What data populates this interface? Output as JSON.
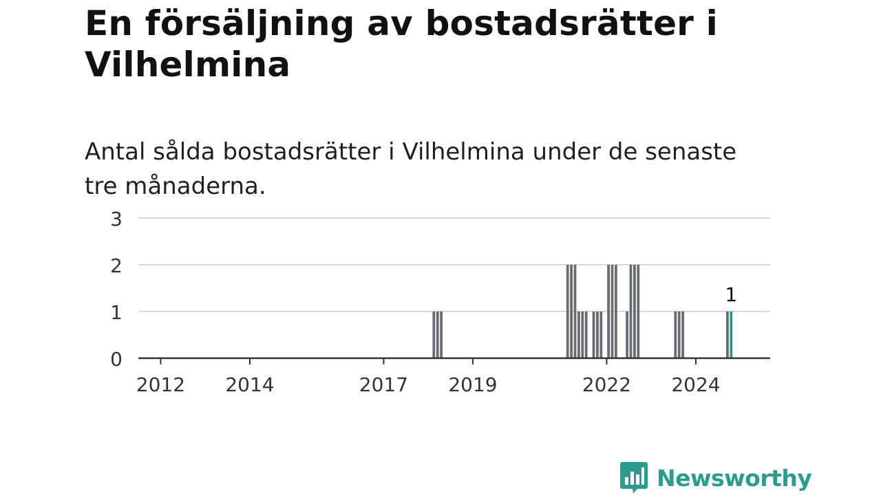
{
  "header": {
    "title": "En försäljning av bostadsrätter i Vilhelmina",
    "subtitle": "Antal sålda bostadsrätter i Vilhelmina under de senaste tre månaderna."
  },
  "brand": {
    "name": "Newsworthy",
    "logo_icon": "bar-chart-speech-bubble-icon",
    "color": "#2a9d8f"
  },
  "colors": {
    "bar": "#6b6b73",
    "highlight": "#1f9e93",
    "grid": "#d9d9d9",
    "axis": "#333333"
  },
  "chart_data": {
    "type": "bar",
    "title": "En försäljning av bostadsrätter i Vilhelmina",
    "subtitle": "Antal sålda bostadsrätter i Vilhelmina under de senaste tre månaderna.",
    "xlabel": "",
    "ylabel": "",
    "ylim": [
      0,
      3
    ],
    "yticks": [
      0,
      1,
      2,
      3
    ],
    "grid": true,
    "legend": "none",
    "xrange": [
      "2011-07",
      "2025-09"
    ],
    "xticks": [
      {
        "date": "2012-01",
        "label": "2012"
      },
      {
        "date": "2014-01",
        "label": "2014"
      },
      {
        "date": "2017-01",
        "label": "2017"
      },
      {
        "date": "2019-01",
        "label": "2019"
      },
      {
        "date": "2022-01",
        "label": "2022"
      },
      {
        "date": "2024-01",
        "label": "2024"
      }
    ],
    "points": [
      {
        "date": "2018-02",
        "value": 1
      },
      {
        "date": "2018-03",
        "value": 1
      },
      {
        "date": "2018-04",
        "value": 1
      },
      {
        "date": "2021-02",
        "value": 2
      },
      {
        "date": "2021-03",
        "value": 2
      },
      {
        "date": "2021-04",
        "value": 2
      },
      {
        "date": "2021-05",
        "value": 1
      },
      {
        "date": "2021-06",
        "value": 1
      },
      {
        "date": "2021-07",
        "value": 1
      },
      {
        "date": "2021-09",
        "value": 1
      },
      {
        "date": "2021-10",
        "value": 1
      },
      {
        "date": "2021-11",
        "value": 1
      },
      {
        "date": "2022-01",
        "value": 2
      },
      {
        "date": "2022-02",
        "value": 2
      },
      {
        "date": "2022-03",
        "value": 2
      },
      {
        "date": "2022-06",
        "value": 1
      },
      {
        "date": "2022-07",
        "value": 2
      },
      {
        "date": "2022-08",
        "value": 2
      },
      {
        "date": "2022-09",
        "value": 2
      },
      {
        "date": "2023-07",
        "value": 1
      },
      {
        "date": "2023-08",
        "value": 1
      },
      {
        "date": "2023-09",
        "value": 1
      },
      {
        "date": "2024-09",
        "value": 1
      },
      {
        "date": "2024-10",
        "value": 1,
        "highlight": true
      }
    ],
    "annotations": [
      {
        "date": "2024-10",
        "value": 1,
        "label": "1"
      }
    ]
  }
}
